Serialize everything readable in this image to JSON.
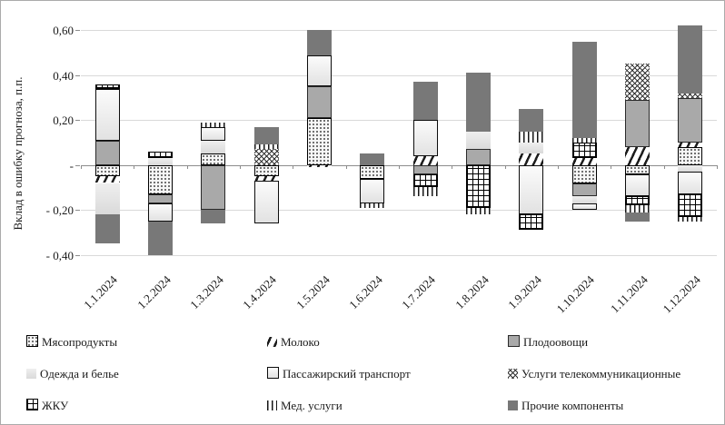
{
  "chart_data": {
    "type": "bar",
    "stacked": true,
    "title": "",
    "ylabel": "Вклад в ошибку прогноза, п.п.",
    "xlabel": "",
    "ylim": [
      -0.45,
      0.65
    ],
    "grid": true,
    "legend_position": "bottom",
    "y_ticks": [
      {
        "label": "0,60",
        "value": 0.6
      },
      {
        "label": "0,40",
        "value": 0.4
      },
      {
        "label": "0,20",
        "value": 0.2
      },
      {
        "label": "-",
        "value": 0.0
      },
      {
        "label": "- 0,20",
        "value": -0.2
      },
      {
        "label": "- 0,40",
        "value": -0.4
      }
    ],
    "categories": [
      "1.1.2024",
      "1.2.2024",
      "1.3.2024",
      "1.4.2024",
      "1.5.2024",
      "1.6.2024",
      "1.7.2024",
      "1.8.2024",
      "1.9.2024",
      "1.10.2024",
      "1.11.2024",
      "1.12.2024"
    ],
    "series": [
      {
        "name": "Мясопродукты",
        "key": "meat",
        "values": [
          -0.05,
          -0.13,
          0.05,
          -0.05,
          0.21,
          -0.06,
          0.0,
          0.0,
          0.0,
          -0.08,
          -0.04,
          0.08
        ]
      },
      {
        "name": "Молоко",
        "key": "milk",
        "values": [
          -0.03,
          0.0,
          0.0,
          -0.02,
          -0.01,
          0.0,
          0.04,
          0.0,
          0.05,
          0.03,
          0.08,
          0.02
        ]
      },
      {
        "name": "Плодоовощи",
        "key": "fruitveg",
        "values": [
          0.11,
          -0.04,
          -0.2,
          0.0,
          0.14,
          0.0,
          -0.04,
          0.07,
          0.0,
          -0.06,
          0.21,
          0.2
        ]
      },
      {
        "name": "Одежда и белье",
        "key": "clothes",
        "values": [
          -0.14,
          0.03,
          0.06,
          0.0,
          0.0,
          0.0,
          0.0,
          0.08,
          0.05,
          -0.03,
          0.0,
          -0.03
        ]
      },
      {
        "name": "Пассажирский транспорт",
        "key": "transport",
        "values": [
          0.23,
          -0.08,
          0.06,
          -0.19,
          0.14,
          -0.11,
          0.16,
          0.0,
          -0.22,
          -0.03,
          -0.1,
          -0.1
        ]
      },
      {
        "name": "Услуги телекоммуникационные",
        "key": "telecom",
        "values": [
          0.0,
          0.0,
          0.0,
          0.07,
          0.0,
          0.0,
          0.0,
          0.0,
          0.0,
          0.0,
          0.16,
          0.02
        ]
      },
      {
        "name": "ЖКУ",
        "key": "utilities",
        "values": [
          0.02,
          0.03,
          0.0,
          0.0,
          0.0,
          0.0,
          -0.06,
          -0.19,
          -0.07,
          0.07,
          -0.04,
          -0.1
        ]
      },
      {
        "name": "Мед. услуги",
        "key": "medical",
        "values": [
          0.0,
          0.0,
          0.02,
          0.02,
          0.0,
          -0.02,
          -0.04,
          -0.03,
          0.05,
          0.02,
          -0.03,
          -0.02
        ]
      },
      {
        "name": "Прочие компоненты",
        "key": "other",
        "values": [
          -0.13,
          -0.15,
          -0.06,
          0.08,
          0.11,
          0.05,
          0.17,
          0.26,
          0.1,
          0.43,
          -0.04,
          0.3
        ]
      }
    ]
  },
  "legend": {
    "items": [
      {
        "key": "meat",
        "label": "Мясопродукты"
      },
      {
        "key": "milk",
        "label": "Молоко"
      },
      {
        "key": "fruitveg",
        "label": "Плодоовощи"
      },
      {
        "key": "clothes",
        "label": "Одежда и белье"
      },
      {
        "key": "transport",
        "label": "Пассажирский транспорт"
      },
      {
        "key": "telecom",
        "label": "Услуги телекоммуникационные"
      },
      {
        "key": "utilities",
        "label": "ЖКУ"
      },
      {
        "key": "medical",
        "label": "Мед. услуги"
      },
      {
        "key": "other",
        "label": "Прочие компоненты"
      }
    ]
  }
}
